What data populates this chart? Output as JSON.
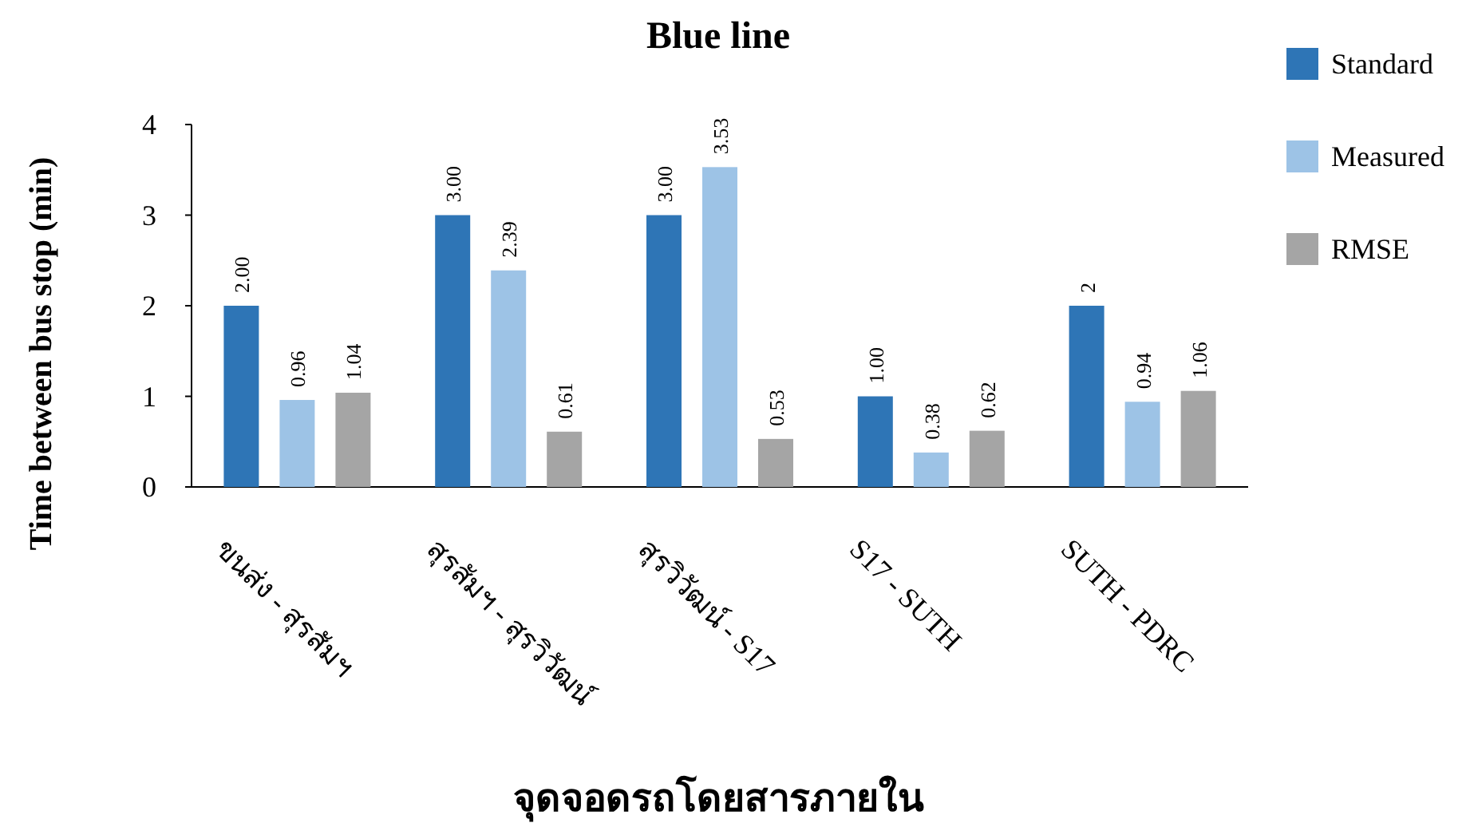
{
  "chart_data": {
    "type": "bar",
    "title": "Blue line",
    "xlabel": "จุดจอดรถโดยสารภายใน",
    "ylabel": "Time between bus stop (min)",
    "categories": [
      "ขนส่ง - สุรสัมฯ",
      "สุรสัมฯ - สุรวิวัฒน์",
      "สุรวิวัฒน์ - S17",
      "S17 - SUTH",
      "SUTH - PDRC"
    ],
    "series": [
      {
        "name": "Standard",
        "color": "#2e75b6",
        "values": [
          2.0,
          3.0,
          3.0,
          1.0,
          2
        ],
        "value_labels": [
          "2.00",
          "3.00",
          "3.00",
          "1.00",
          "2"
        ]
      },
      {
        "name": "Measured",
        "color": "#9dc3e6",
        "values": [
          0.96,
          2.39,
          3.53,
          0.38,
          0.94
        ],
        "value_labels": [
          "0.96",
          "2.39",
          "3.53",
          "0.38",
          "0.94"
        ]
      },
      {
        "name": "RMSE",
        "color": "#a5a5a5",
        "values": [
          1.04,
          0.61,
          0.53,
          0.62,
          1.06
        ],
        "value_labels": [
          "1.04",
          "0.61",
          "0.53",
          "0.62",
          "1.06"
        ]
      }
    ],
    "ylim": [
      0,
      4
    ],
    "yticks": [
      0,
      1,
      2,
      3,
      4
    ],
    "grid": false,
    "legend": "right"
  }
}
